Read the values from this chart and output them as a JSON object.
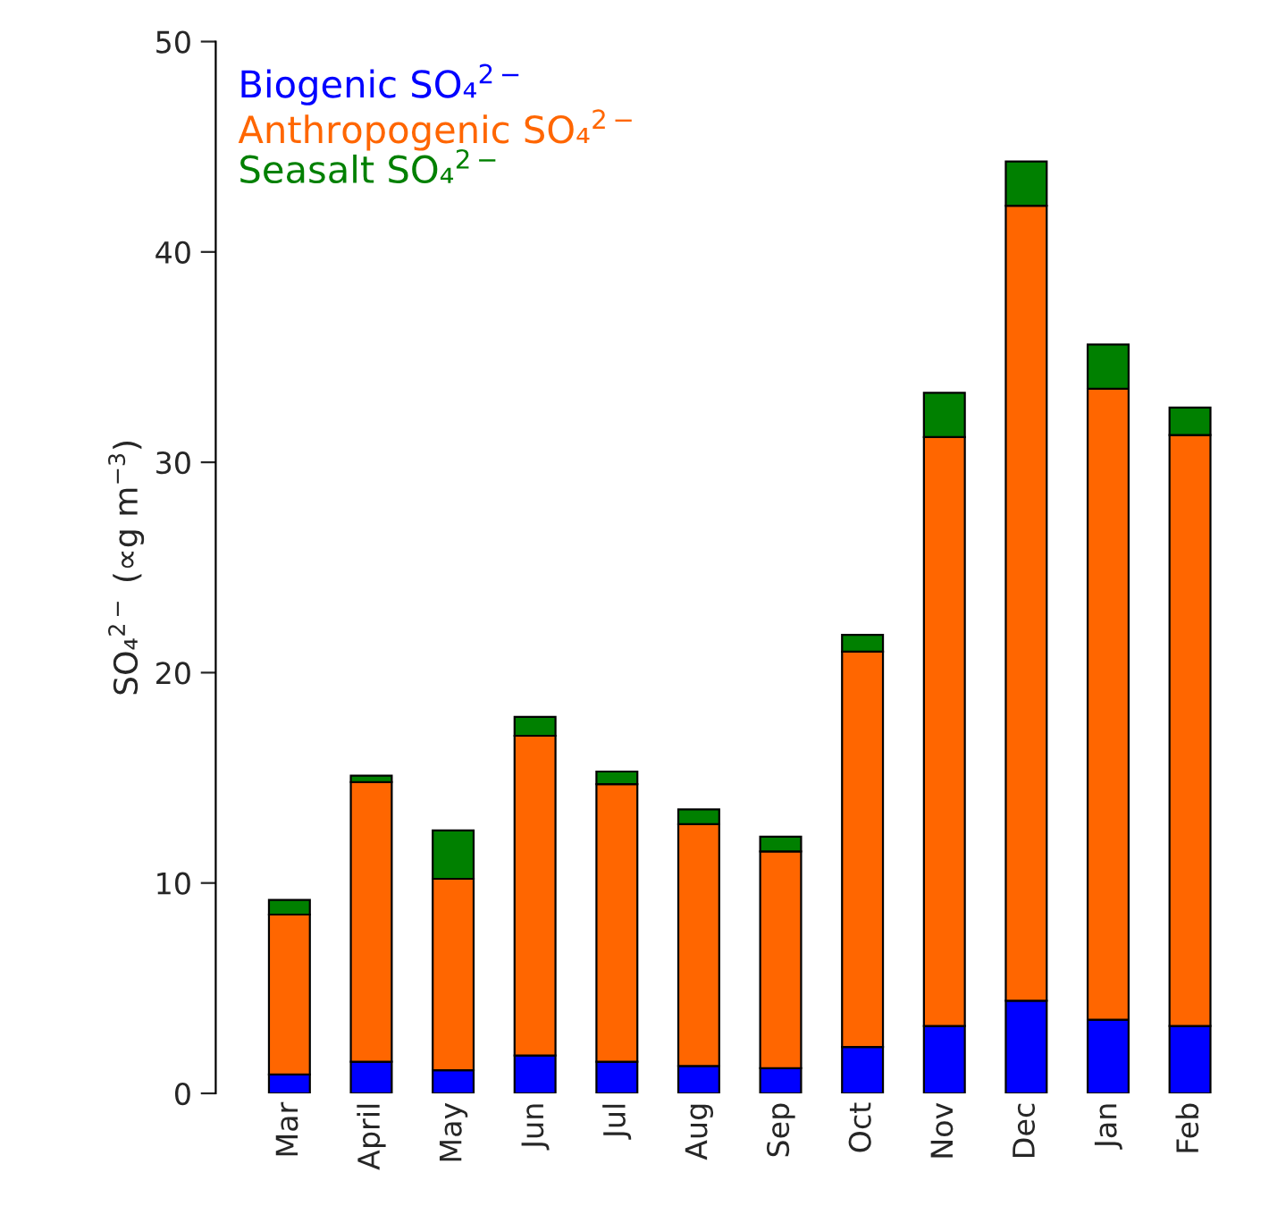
{
  "chart_data": {
    "type": "bar",
    "stacked": true,
    "ylabel": "SO₄$^{2−}$ (∝g m$^{−3}$)",
    "categories": [
      "Mar",
      "April",
      "May",
      "Jun",
      "Jul",
      "Aug",
      "Sep",
      "Oct",
      "Nov",
      "Dec",
      "Jan",
      "Feb"
    ],
    "series": [
      {
        "name": "Biogenic SO₄$^{2−}$",
        "color": "#0000ff",
        "values": [
          0.9,
          1.5,
          1.1,
          1.8,
          1.5,
          1.3,
          1.2,
          2.2,
          3.2,
          4.4,
          3.5,
          3.2
        ]
      },
      {
        "name": "Anthropogenic SO₄$^{2−}$",
        "color": "#ff6600",
        "values": [
          7.6,
          13.3,
          9.1,
          15.2,
          13.2,
          11.5,
          10.3,
          18.8,
          28.0,
          37.8,
          30.0,
          28.1
        ]
      },
      {
        "name": "Seasalt SO₄$^{2−}$",
        "color": "#008000",
        "values": [
          0.7,
          0.3,
          2.3,
          0.9,
          0.6,
          0.7,
          0.7,
          0.8,
          2.1,
          2.1,
          2.1,
          1.3
        ]
      }
    ],
    "ylim": [
      0,
      50
    ],
    "yticks": [
      0,
      10,
      20,
      30,
      40,
      50
    ],
    "legend": "top left",
    "grid": false
  }
}
